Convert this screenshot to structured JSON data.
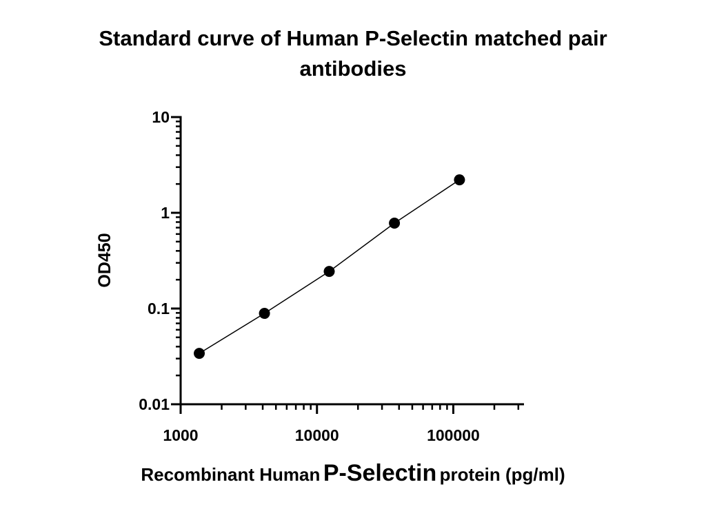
{
  "chart_data": {
    "type": "scatter",
    "title": [
      "Standard curve of Human P-Selectin matched pair",
      "antibodies"
    ],
    "xlabel_parts": [
      "Recombinant Human",
      "P-Selectin",
      "protein (pg/ml)"
    ],
    "ylabel": "OD450",
    "x": [
      1370,
      4120,
      12300,
      37000,
      111000
    ],
    "series": [
      {
        "values": [
          0.034,
          0.089,
          0.244,
          0.78,
          2.21
        ],
        "color": "#000000"
      }
    ],
    "xscale": "log",
    "yscale": "log",
    "xlim": [
      1000,
      330000
    ],
    "ylim": [
      0.01,
      10
    ],
    "xticks": [
      1000,
      10000,
      100000
    ],
    "yticks": [
      0.01,
      0.1,
      1,
      10
    ],
    "connect": true,
    "minor_ticks": true
  }
}
